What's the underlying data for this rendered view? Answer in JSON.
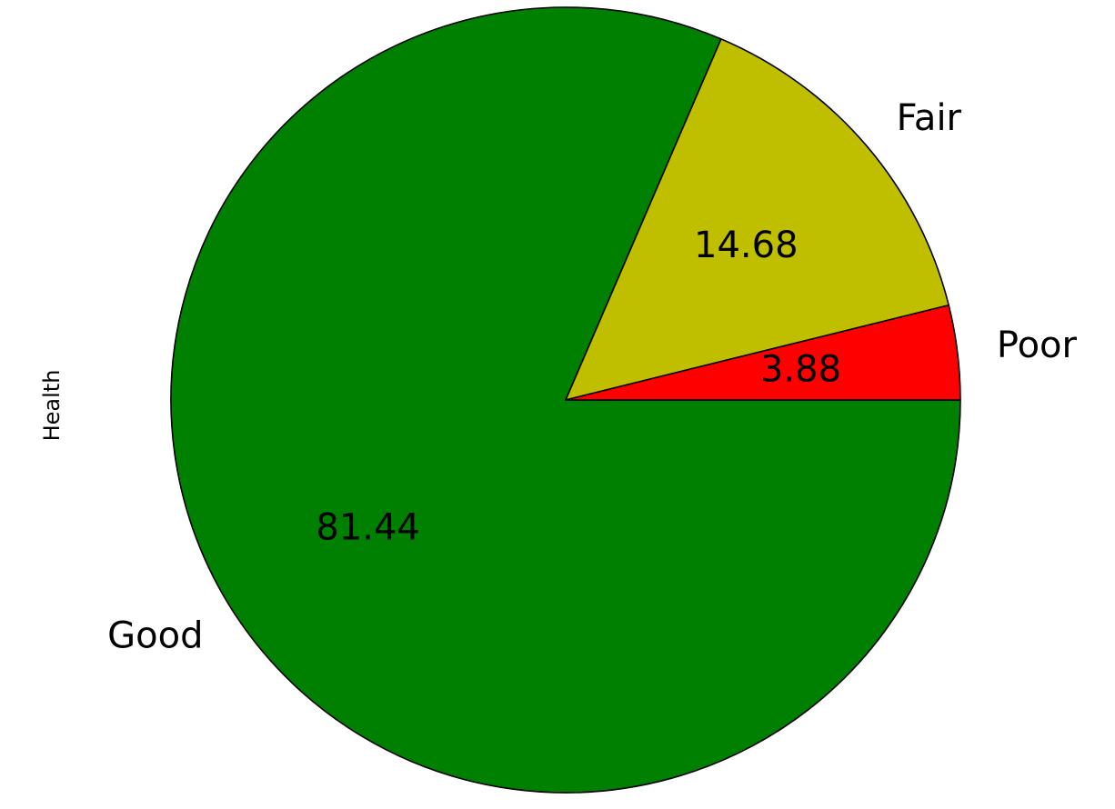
{
  "chart_data": {
    "type": "pie",
    "ylabel": "Health",
    "categories": [
      "Good",
      "Fair",
      "Poor"
    ],
    "values": [
      81.44,
      14.68,
      3.88
    ],
    "value_labels": [
      "81.44",
      "14.68",
      "3.88"
    ],
    "colors": [
      "#008000",
      "#bfbf00",
      "#ff0000"
    ],
    "start_angle_deg": 0,
    "direction": "clockwise"
  }
}
